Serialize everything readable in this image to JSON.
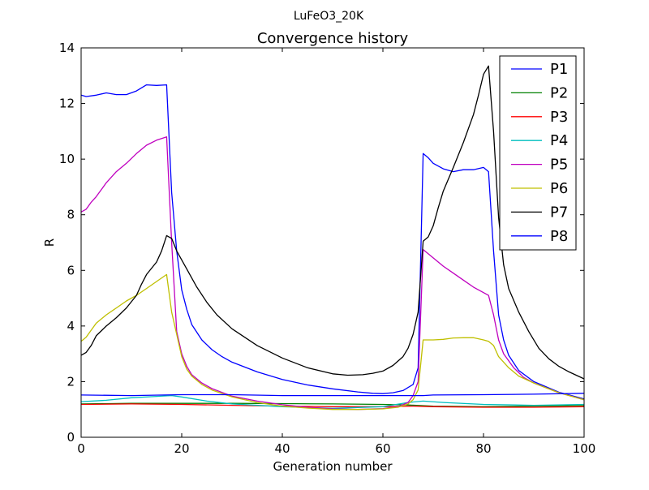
{
  "figure": {
    "suptitle": "LuFeO3_20K"
  },
  "chart_data": {
    "type": "line",
    "title": "Convergence history",
    "xlabel": "Generation number",
    "ylabel": "R",
    "xlim": [
      0,
      100
    ],
    "ylim": [
      0,
      14
    ],
    "xticks": [
      0,
      20,
      40,
      60,
      80,
      100
    ],
    "yticks": [
      0,
      2,
      4,
      6,
      8,
      10,
      12,
      14
    ],
    "grid": false,
    "legend_position": "top-right",
    "series": [
      {
        "name": "P1",
        "color": "#0000ff",
        "points": [
          [
            0,
            12.3
          ],
          [
            1,
            12.25
          ],
          [
            3,
            12.3
          ],
          [
            5,
            12.38
          ],
          [
            7,
            12.32
          ],
          [
            9,
            12.32
          ],
          [
            11,
            12.45
          ],
          [
            13,
            12.67
          ],
          [
            15,
            12.65
          ],
          [
            17,
            12.67
          ],
          [
            18,
            8.8
          ],
          [
            19,
            6.7
          ],
          [
            20,
            5.3
          ],
          [
            21,
            4.6
          ],
          [
            22,
            4.05
          ],
          [
            24,
            3.5
          ],
          [
            26,
            3.15
          ],
          [
            28,
            2.9
          ],
          [
            30,
            2.7
          ],
          [
            35,
            2.35
          ],
          [
            40,
            2.08
          ],
          [
            45,
            1.88
          ],
          [
            50,
            1.74
          ],
          [
            55,
            1.63
          ],
          [
            58,
            1.58
          ],
          [
            60,
            1.57
          ],
          [
            62,
            1.6
          ],
          [
            64,
            1.68
          ],
          [
            66,
            1.9
          ],
          [
            67,
            2.5
          ],
          [
            68,
            10.2
          ],
          [
            69,
            10.05
          ],
          [
            70,
            9.85
          ],
          [
            72,
            9.65
          ],
          [
            74,
            9.55
          ],
          [
            76,
            9.62
          ],
          [
            78,
            9.62
          ],
          [
            80,
            9.7
          ],
          [
            81,
            9.55
          ],
          [
            82,
            6.7
          ],
          [
            83,
            4.4
          ],
          [
            84,
            3.5
          ],
          [
            85,
            2.95
          ],
          [
            87,
            2.4
          ],
          [
            90,
            2.0
          ],
          [
            95,
            1.62
          ],
          [
            100,
            1.38
          ]
        ]
      },
      {
        "name": "P2",
        "color": "#008000",
        "points": [
          [
            0,
            1.2
          ],
          [
            10,
            1.22
          ],
          [
            20,
            1.22
          ],
          [
            30,
            1.22
          ],
          [
            40,
            1.21
          ],
          [
            50,
            1.2
          ],
          [
            60,
            1.18
          ],
          [
            65,
            1.16
          ],
          [
            70,
            1.12
          ],
          [
            80,
            1.1
          ],
          [
            90,
            1.12
          ],
          [
            100,
            1.14
          ]
        ]
      },
      {
        "name": "P3",
        "color": "#ff0000",
        "points": [
          [
            0,
            1.18
          ],
          [
            10,
            1.2
          ],
          [
            20,
            1.18
          ],
          [
            30,
            1.15
          ],
          [
            40,
            1.12
          ],
          [
            50,
            1.1
          ],
          [
            60,
            1.1
          ],
          [
            66,
            1.12
          ],
          [
            70,
            1.1
          ],
          [
            80,
            1.08
          ],
          [
            90,
            1.08
          ],
          [
            100,
            1.1
          ]
        ]
      },
      {
        "name": "P4",
        "color": "#00bfbf",
        "points": [
          [
            0,
            1.28
          ],
          [
            5,
            1.33
          ],
          [
            10,
            1.42
          ],
          [
            15,
            1.47
          ],
          [
            18,
            1.5
          ],
          [
            20,
            1.45
          ],
          [
            25,
            1.3
          ],
          [
            30,
            1.2
          ],
          [
            40,
            1.1
          ],
          [
            50,
            1.04
          ],
          [
            60,
            1.1
          ],
          [
            65,
            1.25
          ],
          [
            68,
            1.3
          ],
          [
            72,
            1.25
          ],
          [
            80,
            1.18
          ],
          [
            90,
            1.15
          ],
          [
            100,
            1.18
          ]
        ]
      },
      {
        "name": "P5",
        "color": "#bf00bf",
        "points": [
          [
            0,
            8.1
          ],
          [
            1,
            8.2
          ],
          [
            2,
            8.45
          ],
          [
            3,
            8.65
          ],
          [
            4,
            8.9
          ],
          [
            5,
            9.15
          ],
          [
            7,
            9.55
          ],
          [
            9,
            9.85
          ],
          [
            11,
            10.2
          ],
          [
            13,
            10.5
          ],
          [
            15,
            10.68
          ],
          [
            17,
            10.8
          ],
          [
            18,
            7.0
          ],
          [
            19,
            3.8
          ],
          [
            20,
            3.0
          ],
          [
            21,
            2.55
          ],
          [
            22,
            2.25
          ],
          [
            24,
            1.95
          ],
          [
            26,
            1.75
          ],
          [
            30,
            1.48
          ],
          [
            35,
            1.3
          ],
          [
            40,
            1.17
          ],
          [
            45,
            1.08
          ],
          [
            50,
            1.02
          ],
          [
            55,
            1.0
          ],
          [
            60,
            1.03
          ],
          [
            63,
            1.1
          ],
          [
            65,
            1.25
          ],
          [
            66,
            1.5
          ],
          [
            67,
            2.0
          ],
          [
            68,
            6.75
          ],
          [
            70,
            6.45
          ],
          [
            72,
            6.15
          ],
          [
            74,
            5.9
          ],
          [
            76,
            5.65
          ],
          [
            78,
            5.4
          ],
          [
            80,
            5.2
          ],
          [
            81,
            5.1
          ],
          [
            82,
            4.4
          ],
          [
            83,
            3.5
          ],
          [
            84,
            3.0
          ],
          [
            86,
            2.5
          ],
          [
            88,
            2.15
          ],
          [
            90,
            1.95
          ],
          [
            95,
            1.6
          ],
          [
            100,
            1.35
          ]
        ]
      },
      {
        "name": "P6",
        "color": "#bfbf00",
        "points": [
          [
            0,
            3.45
          ],
          [
            1,
            3.6
          ],
          [
            2,
            3.85
          ],
          [
            3,
            4.1
          ],
          [
            5,
            4.4
          ],
          [
            7,
            4.65
          ],
          [
            9,
            4.9
          ],
          [
            11,
            5.1
          ],
          [
            13,
            5.35
          ],
          [
            15,
            5.6
          ],
          [
            17,
            5.85
          ],
          [
            18,
            4.5
          ],
          [
            19,
            3.7
          ],
          [
            20,
            2.9
          ],
          [
            21,
            2.45
          ],
          [
            22,
            2.2
          ],
          [
            24,
            1.9
          ],
          [
            26,
            1.7
          ],
          [
            30,
            1.45
          ],
          [
            35,
            1.25
          ],
          [
            40,
            1.12
          ],
          [
            45,
            1.05
          ],
          [
            50,
            1.0
          ],
          [
            55,
            1.0
          ],
          [
            60,
            1.02
          ],
          [
            63,
            1.08
          ],
          [
            65,
            1.2
          ],
          [
            66,
            1.35
          ],
          [
            67,
            1.7
          ],
          [
            68,
            3.5
          ],
          [
            70,
            3.5
          ],
          [
            72,
            3.52
          ],
          [
            74,
            3.57
          ],
          [
            76,
            3.58
          ],
          [
            78,
            3.58
          ],
          [
            80,
            3.5
          ],
          [
            81,
            3.45
          ],
          [
            82,
            3.3
          ],
          [
            83,
            2.9
          ],
          [
            85,
            2.5
          ],
          [
            87,
            2.2
          ],
          [
            90,
            1.95
          ],
          [
            95,
            1.6
          ],
          [
            100,
            1.35
          ]
        ]
      },
      {
        "name": "P7",
        "color": "#000000",
        "points": [
          [
            0,
            2.95
          ],
          [
            1,
            3.05
          ],
          [
            2,
            3.3
          ],
          [
            3,
            3.65
          ],
          [
            5,
            4.0
          ],
          [
            7,
            4.3
          ],
          [
            9,
            4.65
          ],
          [
            11,
            5.1
          ],
          [
            12,
            5.5
          ],
          [
            13,
            5.85
          ],
          [
            15,
            6.3
          ],
          [
            16,
            6.7
          ],
          [
            17,
            7.25
          ],
          [
            18,
            7.15
          ],
          [
            19,
            6.7
          ],
          [
            21,
            6.05
          ],
          [
            23,
            5.4
          ],
          [
            25,
            4.85
          ],
          [
            27,
            4.4
          ],
          [
            30,
            3.9
          ],
          [
            35,
            3.3
          ],
          [
            40,
            2.85
          ],
          [
            45,
            2.5
          ],
          [
            50,
            2.28
          ],
          [
            53,
            2.23
          ],
          [
            56,
            2.25
          ],
          [
            58,
            2.3
          ],
          [
            60,
            2.38
          ],
          [
            62,
            2.58
          ],
          [
            64,
            2.9
          ],
          [
            65,
            3.2
          ],
          [
            66,
            3.7
          ],
          [
            67,
            4.5
          ],
          [
            68,
            7.05
          ],
          [
            69,
            7.2
          ],
          [
            70,
            7.6
          ],
          [
            71,
            8.25
          ],
          [
            72,
            8.85
          ],
          [
            74,
            9.7
          ],
          [
            76,
            10.6
          ],
          [
            78,
            11.6
          ],
          [
            79,
            12.3
          ],
          [
            80,
            13.05
          ],
          [
            81,
            13.35
          ],
          [
            82,
            11.0
          ],
          [
            83,
            7.9
          ],
          [
            84,
            6.2
          ],
          [
            85,
            5.35
          ],
          [
            87,
            4.5
          ],
          [
            89,
            3.8
          ],
          [
            91,
            3.2
          ],
          [
            93,
            2.82
          ],
          [
            95,
            2.55
          ],
          [
            97,
            2.35
          ],
          [
            100,
            2.1
          ]
        ]
      },
      {
        "name": "P8",
        "color": "#0000ff",
        "points": [
          [
            0,
            1.52
          ],
          [
            10,
            1.5
          ],
          [
            20,
            1.53
          ],
          [
            30,
            1.53
          ],
          [
            40,
            1.5
          ],
          [
            50,
            1.5
          ],
          [
            60,
            1.5
          ],
          [
            68,
            1.5
          ],
          [
            70,
            1.52
          ],
          [
            80,
            1.53
          ],
          [
            90,
            1.55
          ],
          [
            100,
            1.58
          ]
        ]
      }
    ]
  }
}
